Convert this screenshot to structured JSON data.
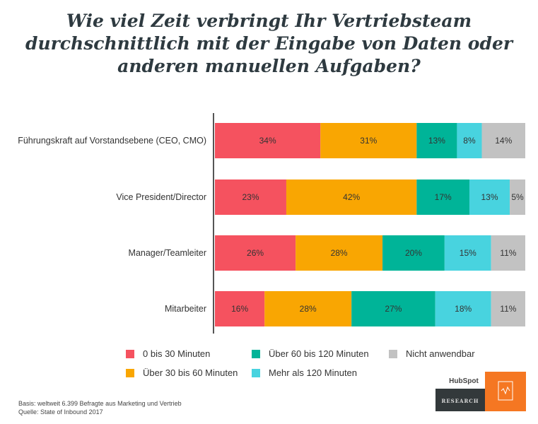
{
  "chart_data": {
    "type": "bar",
    "orientation": "horizontal",
    "stacked": true,
    "title": "Wie viel Zeit verbringt Ihr Vertriebsteam durchschnittlich mit der Eingabe von Daten oder anderen manuellen Aufgaben?",
    "title_lines": [
      "Wie viel Zeit verbringt Ihr Vertriebsteam",
      "durchschnittlich mit der Eingabe von Daten oder",
      "anderen manuellen Aufgaben?"
    ],
    "categories": [
      "Führungskraft auf Vorstandsebene (CEO, CMO)",
      "Vice President/Director",
      "Manager/Teamleiter",
      "Mitarbeiter"
    ],
    "series": [
      {
        "name": "0 bis 30 Minuten",
        "color": "#f5525f",
        "values": [
          34,
          23,
          26,
          16
        ]
      },
      {
        "name": "Über 30 bis 60 Minuten",
        "color": "#f9a602",
        "values": [
          31,
          42,
          28,
          28
        ]
      },
      {
        "name": "Über 60 bis 120 Minuten",
        "color": "#00b498",
        "values": [
          13,
          17,
          20,
          27
        ]
      },
      {
        "name": "Mehr als 120 Minuten",
        "color": "#48d3df",
        "values": [
          8,
          13,
          15,
          18
        ]
      },
      {
        "name": "Nicht anwendbar",
        "color": "#c2c2c2",
        "values": [
          14,
          5,
          11,
          11
        ]
      }
    ],
    "value_suffix": "%",
    "xlim": [
      0,
      100
    ],
    "grid": false,
    "legend_position": "bottom"
  },
  "footer": {
    "basis": "Basis: weltweit 6.399 Befragte aus Marketing und Vertrieb",
    "source": "Quelle: State of Inbound 2017"
  },
  "logo": {
    "brand": "HubSpot",
    "label": "RESEARCH",
    "colors": {
      "dark": "#33393b",
      "orange": "#f57722"
    }
  }
}
